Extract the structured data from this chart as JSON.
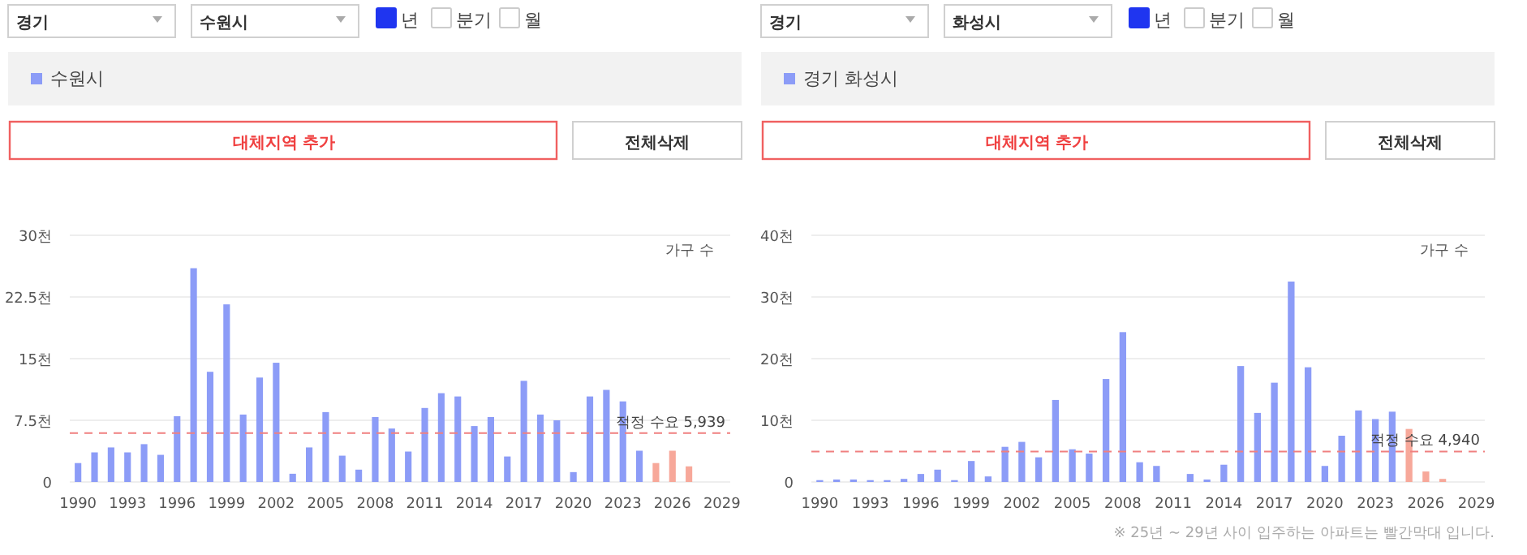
{
  "chart_data": [
    {
      "type": "bar",
      "ylabel": "가구 수",
      "legend": "top",
      "grid": "y",
      "annotations": [
        "경기",
        "수원시",
        "년",
        "분기",
        "월",
        "대체지역 추가",
        "전체삭제"
      ],
      "x": [
        1990,
        1991,
        1992,
        1993,
        1994,
        1995,
        1996,
        1997,
        1998,
        1999,
        2000,
        2001,
        2002,
        2003,
        2004,
        2005,
        2006,
        2007,
        2008,
        2009,
        2010,
        2011,
        2012,
        2013,
        2014,
        2015,
        2016,
        2017,
        2018,
        2019,
        2020,
        2021,
        2022,
        2023,
        2024,
        2025,
        2026,
        2027
      ],
      "xlim": [
        1989.5,
        2029.5
      ],
      "xticks": [
        1990,
        1993,
        1996,
        1999,
        2002,
        2005,
        2008,
        2011,
        2014,
        2017,
        2020,
        2023,
        2026,
        2029
      ],
      "ylim": [
        0,
        30
      ],
      "yticks": [
        0,
        {
          "value": 7.5,
          "label": "7.5천"
        },
        {
          "value": 15,
          "label": "15천"
        },
        {
          "value": 22.5,
          "label": "22.5천"
        },
        {
          "value": 30,
          "label": "30천"
        }
      ],
      "series": [
        {
          "name": "수원시",
          "color": "#8c9cf7",
          "values": [
            2.3,
            3.6,
            4.2,
            3.6,
            4.6,
            3.3,
            8.0,
            26.0,
            13.4,
            21.6,
            8.2,
            12.7,
            14.5,
            1.0,
            4.2,
            8.5,
            3.2,
            1.5,
            7.9,
            6.5,
            3.7,
            9.0,
            10.8,
            10.4,
            6.8,
            7.9,
            3.1,
            12.3,
            8.2,
            7.5,
            1.2,
            10.4,
            11.2,
            9.8,
            3.8,
            2.3,
            3.8,
            1.9
          ],
          "colors": [
            "#8c9cf7",
            "#8c9cf7",
            "#8c9cf7",
            "#8c9cf7",
            "#8c9cf7",
            "#8c9cf7",
            "#8c9cf7",
            "#8c9cf7",
            "#8c9cf7",
            "#8c9cf7",
            "#8c9cf7",
            "#8c9cf7",
            "#8c9cf7",
            "#8c9cf7",
            "#8c9cf7",
            "#8c9cf7",
            "#8c9cf7",
            "#8c9cf7",
            "#8c9cf7",
            "#8c9cf7",
            "#8c9cf7",
            "#8c9cf7",
            "#8c9cf7",
            "#8c9cf7",
            "#8c9cf7",
            "#8c9cf7",
            "#8c9cf7",
            "#8c9cf7",
            "#8c9cf7",
            "#8c9cf7",
            "#8c9cf7",
            "#8c9cf7",
            "#8c9cf7",
            "#8c9cf7",
            "#8c9cf7",
            "#f7a89a",
            "#f7a89a",
            "#f7a89a"
          ]
        }
      ],
      "ref_lines": [
        {
          "axis": "y",
          "value": 5.939,
          "label": "적정 수요 5,939",
          "color": "#f08080",
          "line_style": "dashed"
        }
      ]
    },
    {
      "type": "bar",
      "ylabel": "가구 수",
      "legend": "top",
      "grid": "y",
      "annotations": [
        "경기",
        "화성시",
        "년",
        "분기",
        "월",
        "대체지역 추가",
        "전체삭제",
        "※ 25년 ~ 29년 사이 입주하는 아파트는 빨간막대 입니다."
      ],
      "x": [
        1990,
        1991,
        1992,
        1993,
        1994,
        1995,
        1996,
        1997,
        1998,
        1999,
        2000,
        2001,
        2002,
        2003,
        2004,
        2005,
        2006,
        2007,
        2008,
        2009,
        2010,
        2011,
        2012,
        2013,
        2014,
        2015,
        2016,
        2017,
        2018,
        2019,
        2020,
        2021,
        2022,
        2023,
        2024,
        2025,
        2026,
        2027
      ],
      "xlim": [
        1989.5,
        2029.5
      ],
      "xticks": [
        1990,
        1993,
        1996,
        1999,
        2002,
        2005,
        2008,
        2011,
        2014,
        2017,
        2020,
        2023,
        2026,
        2029
      ],
      "ylim": [
        0,
        40
      ],
      "yticks": [
        0,
        {
          "value": 10,
          "label": "10천"
        },
        {
          "value": 20,
          "label": "20천"
        },
        {
          "value": 30,
          "label": "30천"
        },
        {
          "value": 40,
          "label": "40천"
        }
      ],
      "series": [
        {
          "name": "경기 화성시",
          "color": "#8c9cf7",
          "values": [
            0.3,
            0.4,
            0.4,
            0.3,
            0.3,
            0.5,
            1.3,
            2.0,
            0.3,
            3.4,
            0.9,
            5.7,
            6.5,
            4.0,
            13.3,
            5.3,
            4.6,
            16.7,
            24.3,
            3.2,
            2.6,
            0,
            1.3,
            0.4,
            2.8,
            18.8,
            11.2,
            16.1,
            32.5,
            18.6,
            2.6,
            7.5,
            11.6,
            10.2,
            11.4,
            8.6,
            1.7,
            0.5
          ],
          "colors": [
            "#8c9cf7",
            "#8c9cf7",
            "#8c9cf7",
            "#8c9cf7",
            "#8c9cf7",
            "#8c9cf7",
            "#8c9cf7",
            "#8c9cf7",
            "#8c9cf7",
            "#8c9cf7",
            "#8c9cf7",
            "#8c9cf7",
            "#8c9cf7",
            "#8c9cf7",
            "#8c9cf7",
            "#8c9cf7",
            "#8c9cf7",
            "#8c9cf7",
            "#8c9cf7",
            "#8c9cf7",
            "#8c9cf7",
            "#8c9cf7",
            "#8c9cf7",
            "#8c9cf7",
            "#8c9cf7",
            "#8c9cf7",
            "#8c9cf7",
            "#8c9cf7",
            "#8c9cf7",
            "#8c9cf7",
            "#8c9cf7",
            "#8c9cf7",
            "#8c9cf7",
            "#8c9cf7",
            "#8c9cf7",
            "#f7a89a",
            "#f7a89a",
            "#f7a89a"
          ]
        }
      ],
      "ref_lines": [
        {
          "axis": "y",
          "value": 4.94,
          "label": "적정 수요 4,940",
          "color": "#f08080",
          "line_style": "dashed"
        }
      ]
    }
  ]
}
